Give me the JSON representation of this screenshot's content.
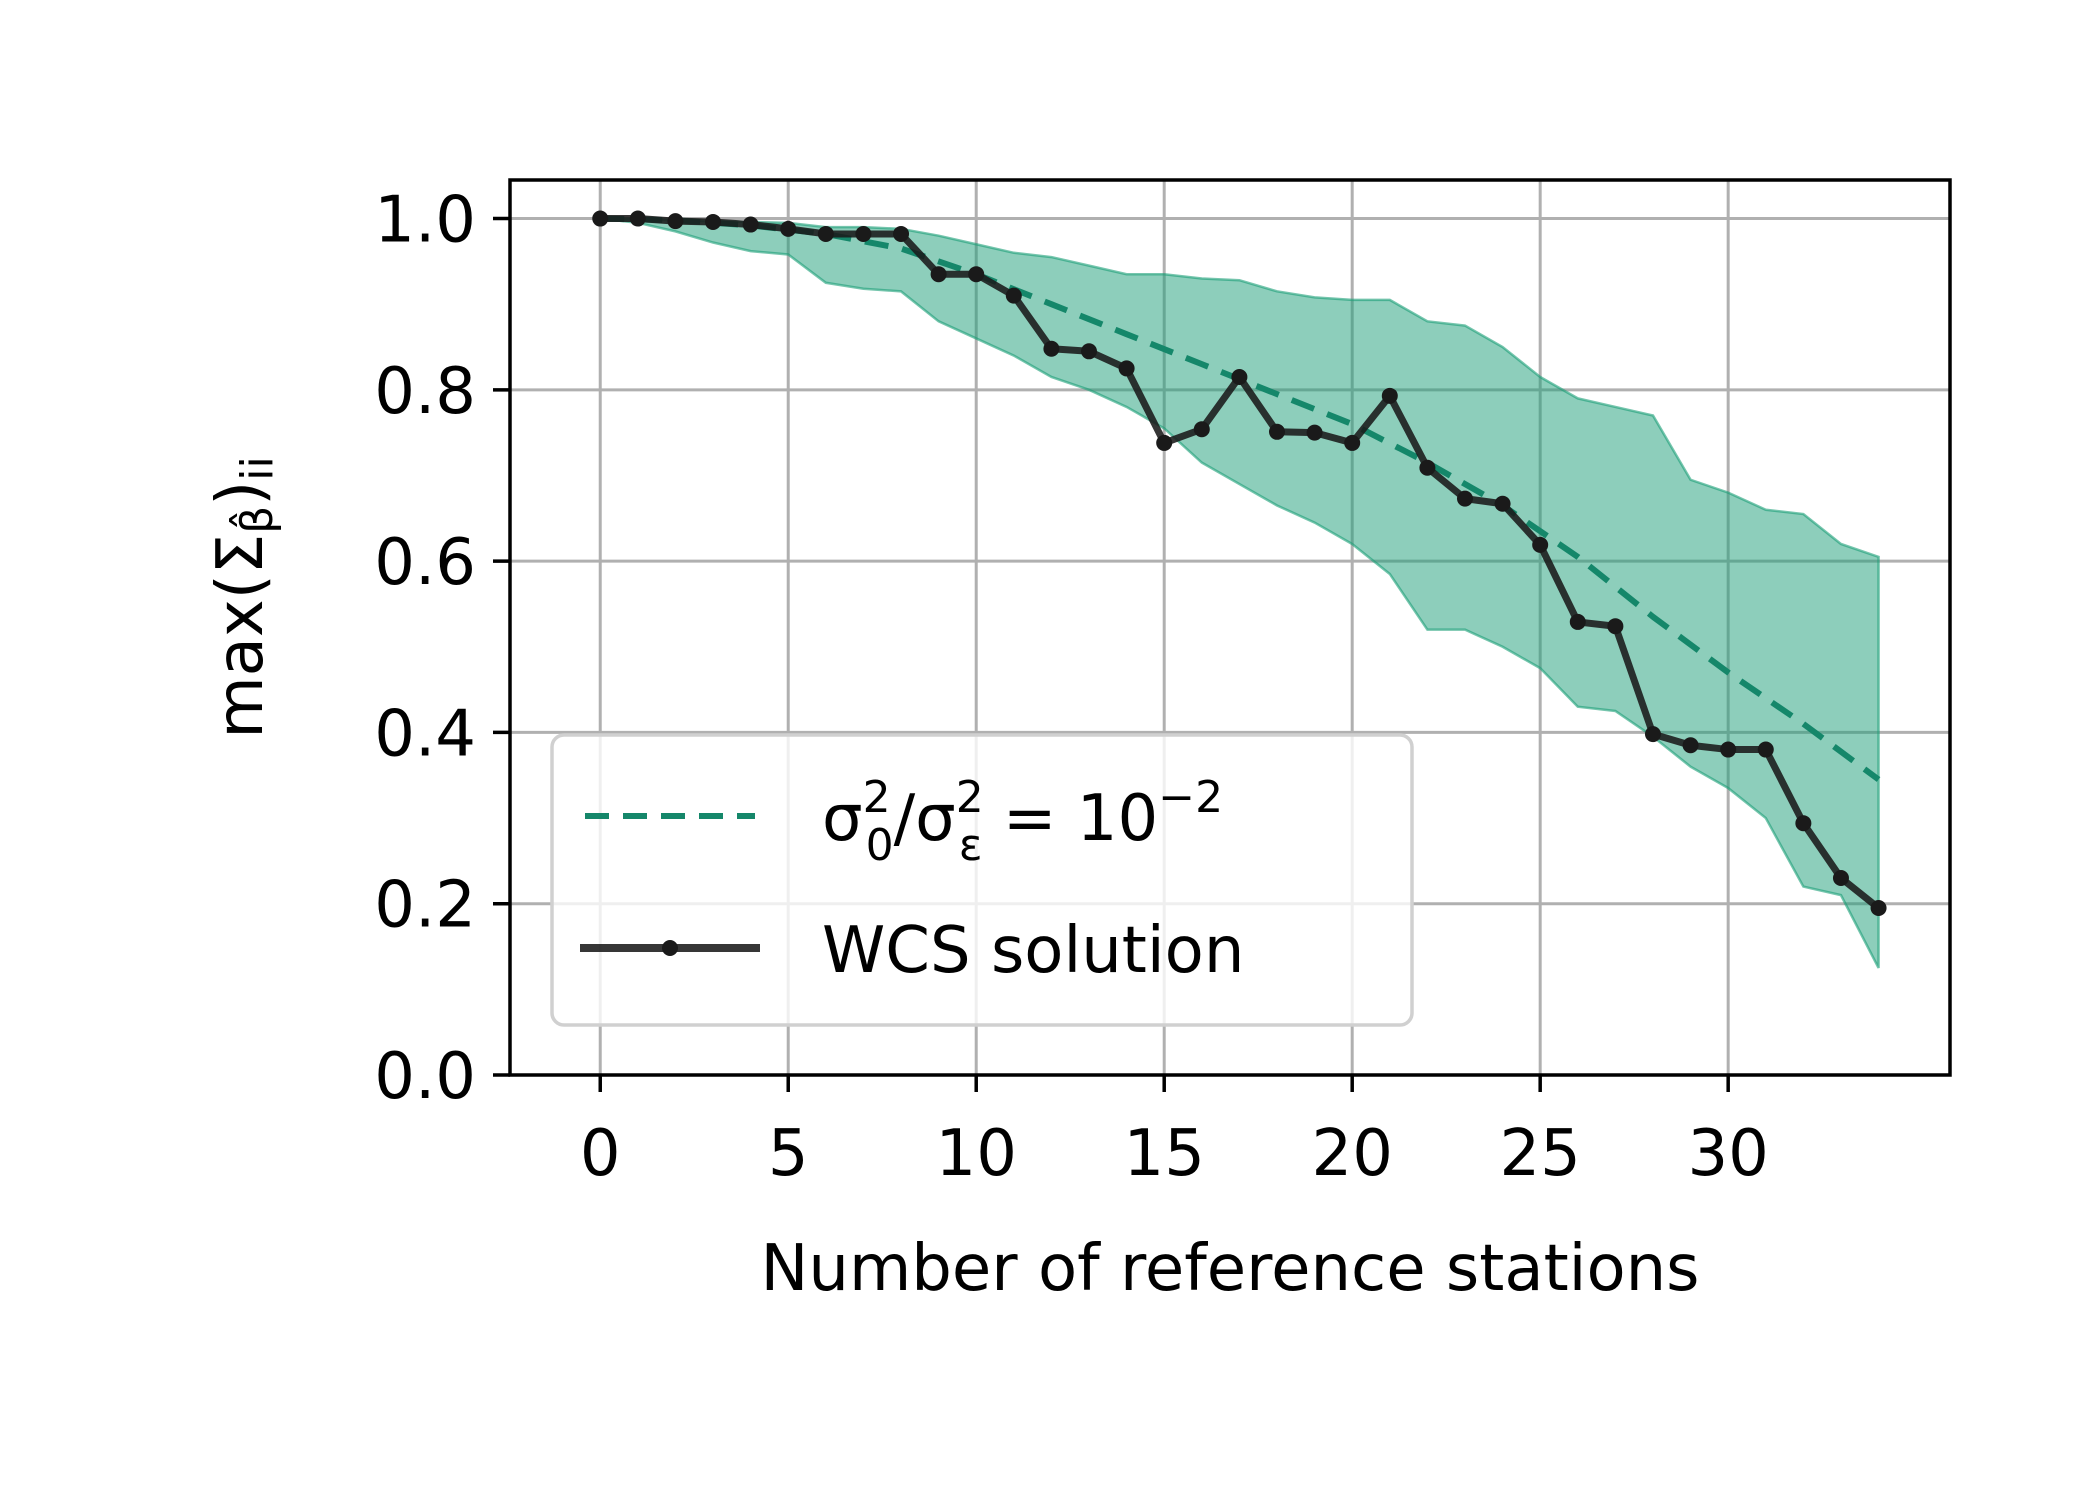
{
  "chart_data": {
    "type": "line",
    "xlabel": "Number of reference stations",
    "ylabel": "max(Σβ̂)ii",
    "ylabel_parts": {
      "pre": "max(Σ",
      "sub": "β̂",
      "post": ")",
      "post_sub": "ii"
    },
    "xlim": [
      -2.4,
      35.9
    ],
    "ylim": [
      0.0,
      1.045
    ],
    "xticks": [
      0,
      5,
      10,
      15,
      20,
      25,
      30
    ],
    "xtick_labels": [
      "0",
      "5",
      "10",
      "15",
      "20",
      "25",
      "30"
    ],
    "yticks": [
      0.0,
      0.2,
      0.4,
      0.6,
      0.8,
      1.0
    ],
    "ytick_labels": [
      "0.0",
      "0.2",
      "0.4",
      "0.6",
      "0.8",
      "1.0"
    ],
    "grid": true,
    "legend_position": "lower-left",
    "colors": {
      "band": "#1b9e77",
      "dashed": "#15876a",
      "solution": "#1a1a1a"
    },
    "band": {
      "x": [
        0,
        1,
        2,
        3,
        4,
        5,
        6,
        7,
        8,
        9,
        10,
        11,
        12,
        13,
        14,
        15,
        16,
        17,
        18,
        19,
        20,
        21,
        22,
        23,
        24,
        25,
        26,
        27,
        28,
        29,
        30,
        31,
        32,
        33,
        34
      ],
      "upper": [
        1.0,
        1.0,
        0.998,
        0.997,
        0.996,
        0.995,
        0.99,
        0.99,
        0.988,
        0.98,
        0.97,
        0.96,
        0.955,
        0.945,
        0.935,
        0.935,
        0.93,
        0.928,
        0.915,
        0.908,
        0.905,
        0.905,
        0.88,
        0.875,
        0.85,
        0.815,
        0.79,
        0.78,
        0.77,
        0.695,
        0.68,
        0.66,
        0.655,
        0.62,
        0.605
      ],
      "lower": [
        1.0,
        0.995,
        0.985,
        0.972,
        0.962,
        0.958,
        0.925,
        0.918,
        0.915,
        0.88,
        0.86,
        0.84,
        0.815,
        0.8,
        0.78,
        0.755,
        0.715,
        0.69,
        0.665,
        0.645,
        0.62,
        0.585,
        0.52,
        0.52,
        0.5,
        0.475,
        0.43,
        0.425,
        0.395,
        0.36,
        0.335,
        0.3,
        0.22,
        0.21,
        0.125
      ]
    },
    "series": [
      {
        "name": "σ0²/σε² = 10⁻²",
        "legend": {
          "base1": "σ",
          "sup1": "2",
          "sub1": "0",
          "mid": "/σ",
          "sup2": "2",
          "sub2": "ε",
          "eq": " = 10",
          "sup3": "−2"
        },
        "style": "dashed",
        "x": [
          0,
          2,
          4,
          6,
          8,
          10,
          12,
          14,
          16,
          18,
          20,
          22,
          24,
          26,
          28,
          30,
          32,
          34
        ],
        "values": [
          1.0,
          0.998,
          0.992,
          0.982,
          0.965,
          0.935,
          0.9,
          0.865,
          0.83,
          0.795,
          0.76,
          0.715,
          0.665,
          0.605,
          0.535,
          0.47,
          0.41,
          0.345
        ]
      },
      {
        "name": "WCS solution",
        "style": "solid-markers",
        "x": [
          0,
          1,
          2,
          3,
          4,
          5,
          6,
          7,
          8,
          9,
          10,
          11,
          12,
          13,
          14,
          15,
          16,
          17,
          18,
          19,
          20,
          21,
          22,
          23,
          24,
          25,
          26,
          27,
          28,
          29,
          30,
          31,
          32,
          33,
          34
        ],
        "values": [
          1.0,
          1.0,
          0.997,
          0.996,
          0.993,
          0.988,
          0.982,
          0.982,
          0.982,
          0.935,
          0.935,
          0.91,
          0.848,
          0.845,
          0.825,
          0.738,
          0.754,
          0.815,
          0.751,
          0.75,
          0.738,
          0.793,
          0.709,
          0.673,
          0.667,
          0.619,
          0.529,
          0.524,
          0.398,
          0.385,
          0.38,
          0.38,
          0.294,
          0.23,
          0.195
        ]
      }
    ]
  }
}
